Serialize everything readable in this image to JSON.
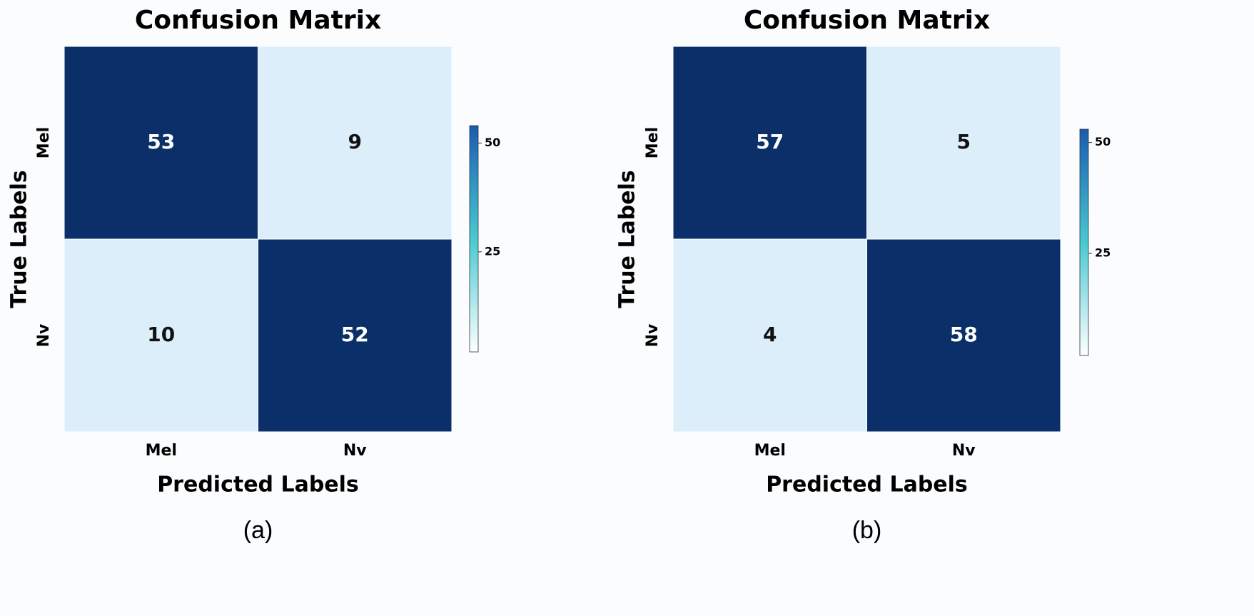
{
  "chart_data": [
    {
      "type": "heatmap",
      "title": "Confusion Matrix",
      "xlabel": "Predicted Labels",
      "ylabel": "True Labels",
      "x_categories": [
        "Mel",
        "Nv"
      ],
      "y_categories": [
        "Mel",
        "Nv"
      ],
      "values": [
        [
          53,
          9
        ],
        [
          10,
          52
        ]
      ],
      "clim": [
        2,
        54
      ],
      "cticks": [
        25,
        50
      ],
      "low_color": "#ddeefb",
      "high_color": "#0b3069",
      "colorbar_colors": [
        "#ffffff",
        "#48c9d2",
        "#1a5cb0"
      ],
      "caption": "(a)"
    },
    {
      "type": "heatmap",
      "title": "Confusion Matrix",
      "xlabel": "Predicted Labels",
      "ylabel": "True Labels",
      "x_categories": [
        "Mel",
        "Nv"
      ],
      "y_categories": [
        "Mel",
        "Nv"
      ],
      "values": [
        [
          57,
          5
        ],
        [
          4,
          58
        ]
      ],
      "clim": [
        2,
        53
      ],
      "cticks": [
        25,
        50
      ],
      "low_color": "#ddeefb",
      "high_color": "#0b3069",
      "colorbar_colors": [
        "#ffffff",
        "#48c9d2",
        "#1a5cb0"
      ],
      "caption": "(b)"
    }
  ]
}
